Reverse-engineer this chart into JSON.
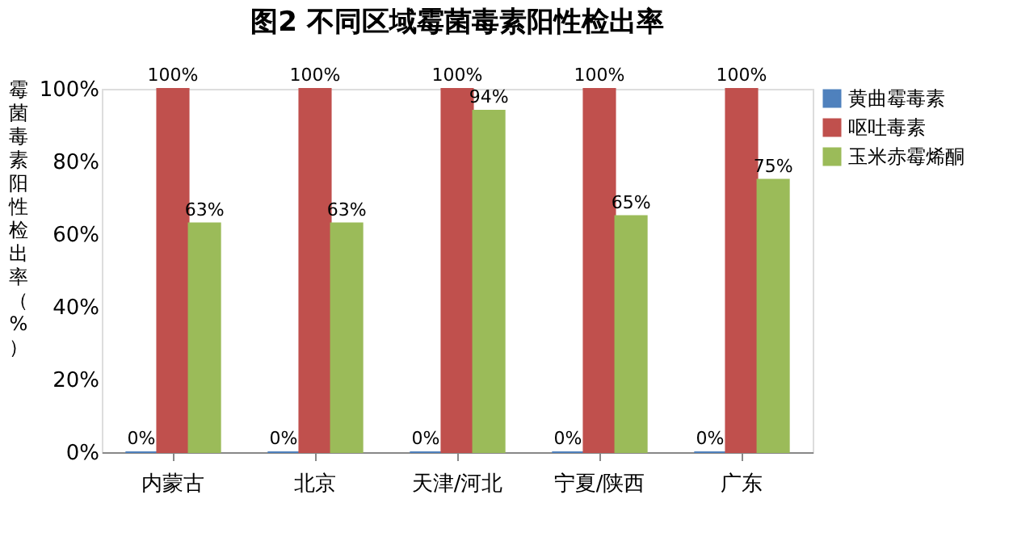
{
  "chart_data": {
    "type": "bar",
    "title": "图2  不同区域霉菌毒素阳性检出率",
    "ylabel": "霉菌毒素阳性检出率（%）",
    "categories": [
      "内蒙古",
      "北京",
      "天津/河北",
      "宁夏/陕西",
      "广东"
    ],
    "series": [
      {
        "name": "黄曲霉毒素",
        "color": "#4f81bd",
        "values": [
          0,
          0,
          0,
          0,
          0
        ],
        "value_labels": [
          "0%",
          "0%",
          "0%",
          "0%",
          "0%"
        ]
      },
      {
        "name": "呕吐毒素",
        "color": "#c0504d",
        "values": [
          100,
          100,
          100,
          100,
          100
        ],
        "value_labels": [
          "100%",
          "100%",
          "100%",
          "100%",
          "100%"
        ]
      },
      {
        "name": "玉米赤霉烯酮",
        "color": "#9bbb59",
        "values": [
          63,
          63,
          94,
          65,
          75
        ],
        "value_labels": [
          "63%",
          "63%",
          "94%",
          "65%",
          "75%"
        ]
      }
    ],
    "ylim": [
      0,
      100
    ],
    "yticks": [
      {
        "value": 0,
        "label": "0%"
      },
      {
        "value": 20,
        "label": "20%"
      },
      {
        "value": 40,
        "label": "40%"
      },
      {
        "value": 60,
        "label": "60%"
      },
      {
        "value": 80,
        "label": "80%"
      },
      {
        "value": 100,
        "label": "100%"
      }
    ],
    "grid": false,
    "legend": "right"
  }
}
